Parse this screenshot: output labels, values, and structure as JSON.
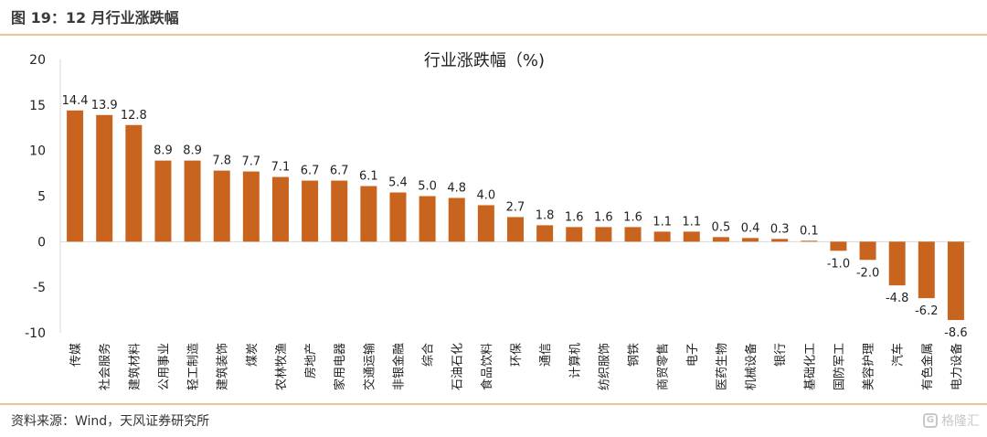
{
  "header": {
    "figure_title": "图 19：12 月行业涨跌幅"
  },
  "footer": {
    "source": "资料来源：Wind，天风证券研究所",
    "watermark": "格隆汇",
    "watermark_glyph": "G"
  },
  "colors": {
    "bar": "#C8641E",
    "rule": "#E6C79A",
    "axis": "#D9D9D9"
  },
  "chart_data": {
    "type": "bar",
    "title": "行业涨跌幅（%)",
    "xlabel": "",
    "ylabel": "",
    "ylim": [
      -10,
      20
    ],
    "yticks": [
      20,
      15,
      10,
      5,
      0,
      -5,
      -10
    ],
    "grid": false,
    "categories": [
      "传媒",
      "社会服务",
      "建筑材料",
      "公用事业",
      "轻工制造",
      "建筑装饰",
      "煤炭",
      "农林牧渔",
      "房地产",
      "家用电器",
      "交通运输",
      "非银金融",
      "综合",
      "石油石化",
      "食品饮料",
      "环保",
      "通信",
      "计算机",
      "纺织服饰",
      "钢铁",
      "商贸零售",
      "电子",
      "医药生物",
      "机械设备",
      "银行",
      "基础化工",
      "国防军工",
      "美容护理",
      "汽车",
      "有色金属",
      "电力设备"
    ],
    "values": [
      14.4,
      13.9,
      12.8,
      8.9,
      8.9,
      7.8,
      7.7,
      7.1,
      6.7,
      6.7,
      6.1,
      5.4,
      5.0,
      4.8,
      4.0,
      2.7,
      1.8,
      1.6,
      1.6,
      1.6,
      1.1,
      1.1,
      0.5,
      0.4,
      0.3,
      0.1,
      -1.0,
      -2.0,
      -4.8,
      -6.2,
      -8.6
    ],
    "value_labels": [
      "14.4",
      "13.9",
      "12.8",
      "8.9",
      "8.9",
      "7.8",
      "7.7",
      "7.1",
      "6.7",
      "6.7",
      "6.1",
      "5.4",
      "5.0",
      "4.8",
      "4.0",
      "2.7",
      "1.8",
      "1.6",
      "1.6",
      "1.6",
      "1.1",
      "1.1",
      "0.5",
      "0.4",
      "0.3",
      "0.1",
      "-1.0",
      "-2.0",
      "-4.8",
      "-6.2",
      "-8.6"
    ]
  }
}
